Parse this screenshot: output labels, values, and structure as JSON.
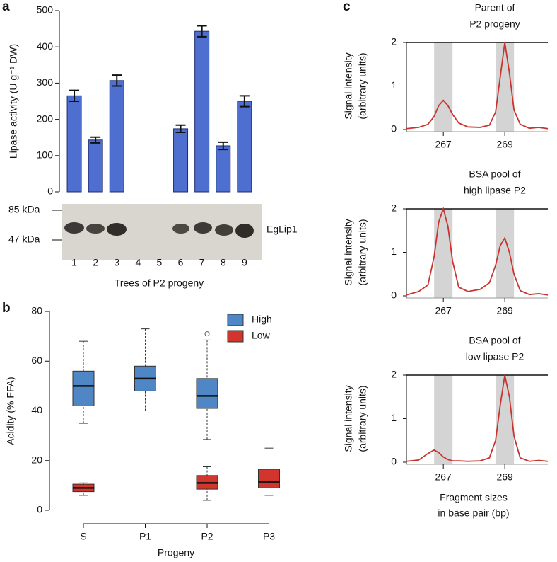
{
  "chart_data": [
    {
      "type": "bar",
      "panel": "a",
      "y_label": "Lipase activity (U g⁻¹ DW)",
      "x_label": "Trees of P2 progeny",
      "categories": [
        "1",
        "2",
        "3",
        "4",
        "5",
        "6",
        "7",
        "8",
        "9"
      ],
      "values": [
        265,
        143,
        307,
        null,
        null,
        174,
        443,
        127,
        250
      ],
      "errors": [
        15,
        8,
        15,
        null,
        null,
        10,
        15,
        10,
        15
      ],
      "color": "#4e6fcf",
      "ylim": [
        0,
        500
      ],
      "yticks": [
        0,
        100,
        200,
        300,
        400,
        500
      ],
      "blot_markers": [
        "85 kDa",
        "47 kDa"
      ],
      "blot_label": "EgLip1"
    },
    {
      "type": "box",
      "panel": "b",
      "y_label": "Acidity (% FFA)",
      "x_label": "Progeny",
      "categories": [
        "S",
        "P1",
        "P2",
        "P3"
      ],
      "ylim": [
        -3,
        83
      ],
      "yticks": [
        0,
        20,
        40,
        60,
        80
      ],
      "legend": "top-right",
      "series": [
        {
          "name": "High",
          "color": "#4f86c6",
          "values": [
            {
              "min": 35,
              "q1": 42,
              "median": 50,
              "q3": 56,
              "max": 68
            },
            {
              "min": 40,
              "q1": 48,
              "median": 53,
              "q3": 58,
              "max": 73
            },
            {
              "min": 28.5,
              "q1": 41,
              "median": 46,
              "q3": 53,
              "max": 68.5
            },
            null
          ],
          "outliers": [
            [],
            [],
            [
              71
            ],
            []
          ]
        },
        {
          "name": "Low",
          "color": "#d2352b",
          "values": [
            {
              "min": 6,
              "q1": 7.5,
              "median": 9,
              "q3": 10.5,
              "max": 11
            },
            null,
            {
              "min": 4,
              "q1": 8.5,
              "median": 11,
              "q3": 14,
              "max": 17.5
            },
            {
              "min": 6,
              "q1": 9,
              "median": 11.5,
              "q3": 16.5,
              "max": 25
            }
          ],
          "outliers": [
            [],
            [],
            [],
            []
          ]
        }
      ]
    },
    {
      "type": "line",
      "panel": "c",
      "title": [
        "Parent of",
        "P2 progeny"
      ],
      "y_label": [
        "Signal intensity",
        "(arbitrary units)"
      ],
      "x": [
        265.8,
        266.2,
        266.5,
        266.7,
        266.85,
        267,
        267.15,
        267.3,
        267.5,
        267.8,
        268.2,
        268.5,
        268.7,
        268.85,
        269,
        269.15,
        269.3,
        269.5,
        269.8,
        270.1,
        270.4
      ],
      "values": [
        0.02,
        0.05,
        0.12,
        0.3,
        0.55,
        0.67,
        0.55,
        0.35,
        0.15,
        0.06,
        0.05,
        0.1,
        0.4,
        1.2,
        2.0,
        1.3,
        0.45,
        0.12,
        0.03,
        0.05,
        0.02
      ],
      "color": "#c8352f",
      "xlim": [
        265.8,
        270.4
      ],
      "xticks": [
        267,
        269
      ],
      "ylim": [
        0,
        2
      ],
      "yticks": [
        0,
        1,
        2
      ],
      "shaded": [
        [
          266.7,
          267.3
        ],
        [
          268.7,
          269.3
        ]
      ]
    },
    {
      "type": "line",
      "title": [
        "BSA pool of",
        "high lipase P2"
      ],
      "y_label": [
        "Signal intensity",
        "(arbitrary units)"
      ],
      "x": [
        265.8,
        266.2,
        266.5,
        266.7,
        266.85,
        267,
        267.15,
        267.3,
        267.5,
        267.8,
        268.2,
        268.5,
        268.7,
        268.85,
        269,
        269.15,
        269.3,
        269.5,
        269.8,
        270.1,
        270.4
      ],
      "values": [
        0.02,
        0.1,
        0.25,
        0.9,
        1.7,
        2.0,
        1.6,
        0.8,
        0.2,
        0.1,
        0.15,
        0.3,
        0.7,
        1.15,
        1.33,
        1.0,
        0.5,
        0.12,
        0.03,
        0.05,
        0.02
      ],
      "color": "#c8352f",
      "xlim": [
        265.8,
        270.4
      ],
      "xticks": [
        267,
        269
      ],
      "ylim": [
        0,
        2
      ],
      "yticks": [
        0,
        1,
        2
      ],
      "shaded": [
        [
          266.7,
          267.3
        ],
        [
          268.7,
          269.3
        ]
      ]
    },
    {
      "type": "line",
      "title": [
        "BSA pool of",
        "low lipase P2"
      ],
      "y_label": [
        "Signal intensity",
        "(arbitrary units)"
      ],
      "x_label": [
        "Fragment sizes",
        "in base pair (bp)"
      ],
      "x": [
        265.8,
        266.2,
        266.5,
        266.7,
        266.85,
        267,
        267.15,
        267.3,
        267.5,
        267.8,
        268.2,
        268.5,
        268.7,
        268.85,
        269,
        269.15,
        269.3,
        269.5,
        269.8,
        270.1,
        270.4
      ],
      "values": [
        0.02,
        0.05,
        0.2,
        0.28,
        0.22,
        0.12,
        0.06,
        0.03,
        0.03,
        0.02,
        0.03,
        0.1,
        0.5,
        1.3,
        2.0,
        1.5,
        0.6,
        0.1,
        0.02,
        0.04,
        0.02
      ],
      "color": "#c8352f",
      "xlim": [
        265.8,
        270.4
      ],
      "xticks": [
        267,
        269
      ],
      "ylim": [
        0,
        2
      ],
      "yticks": [
        0,
        1,
        2
      ],
      "shaded": [
        [
          266.7,
          267.3
        ],
        [
          268.7,
          269.3
        ]
      ]
    }
  ]
}
